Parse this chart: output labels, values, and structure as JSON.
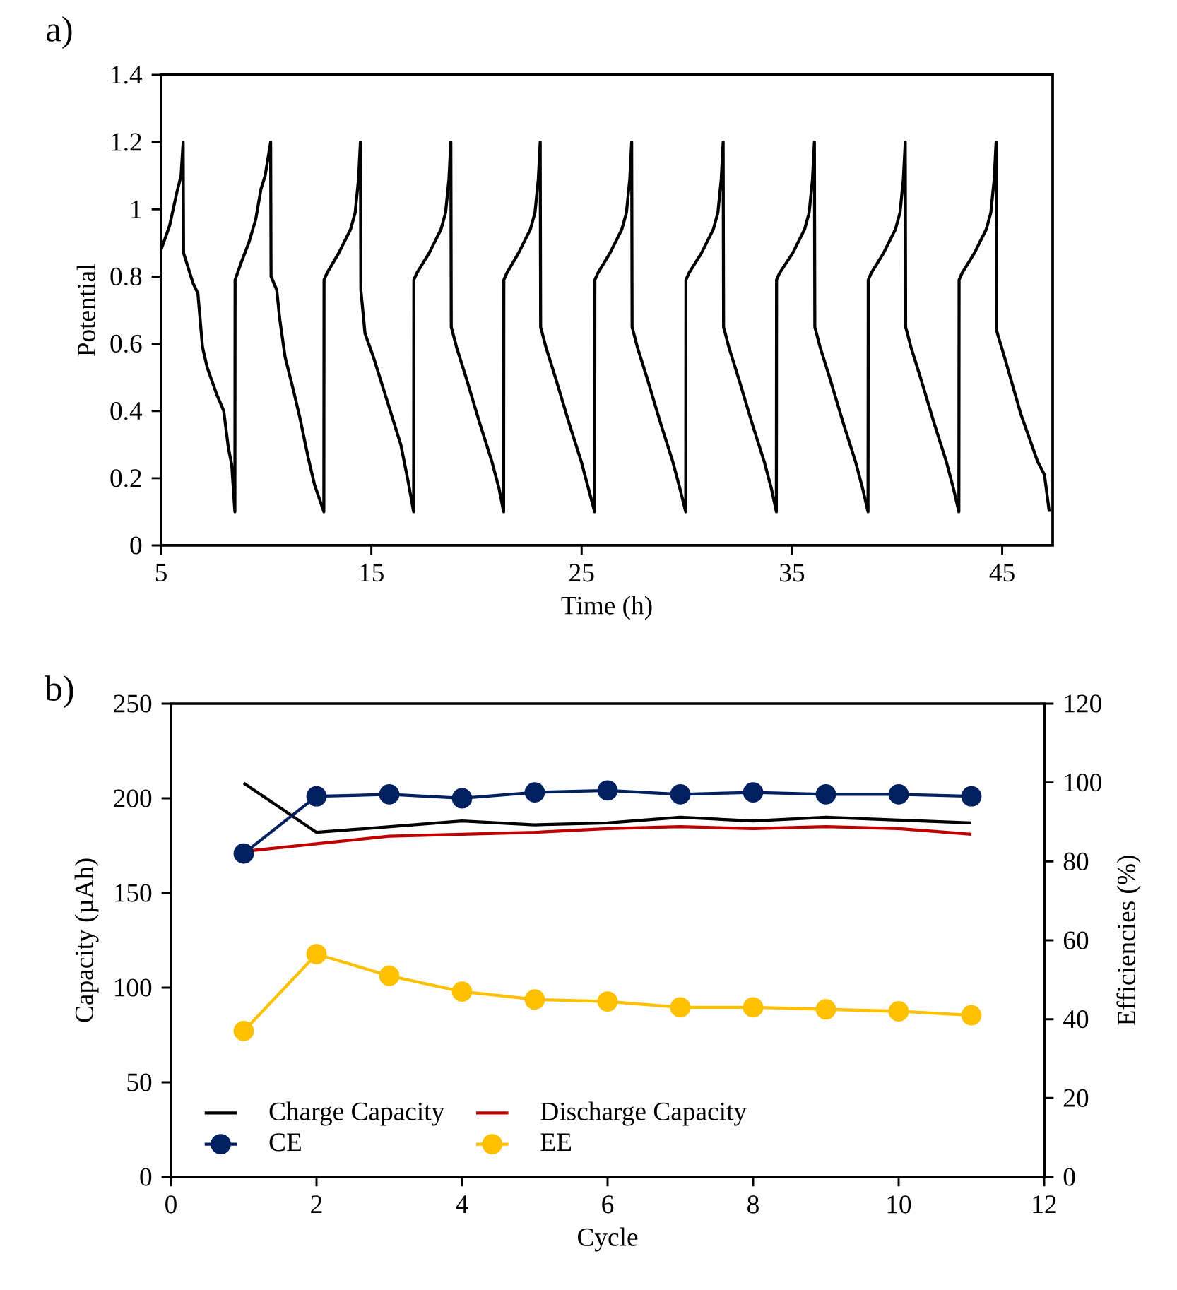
{
  "chart_data": [
    {
      "type": "line",
      "annotations": [
        "a)"
      ],
      "xlabel": "Time (h)",
      "ylabel": "Potential",
      "xlim": [
        5,
        47.4
      ],
      "xticks": [
        5,
        15,
        25,
        35,
        45
      ],
      "ylim": [
        0,
        1.4
      ],
      "yticks": [
        0,
        0.2,
        0.4,
        0.6,
        0.8,
        1,
        1.2,
        1.4
      ],
      "series": [
        {
          "color": "#000000",
          "x": [
            5,
            5.4,
            5.75,
            5.95,
            6.05,
            6.07,
            6.52,
            6.75,
            6.97,
            7.19,
            7.64,
            7.98,
            8.2,
            8.36,
            8.51,
            8.52,
            8.8,
            9.17,
            9.5,
            9.75,
            9.95,
            10.21,
            10.23,
            10.5,
            10.65,
            10.9,
            11.3,
            11.6,
            12.0,
            12.3,
            12.74,
            12.75,
            12.89,
            13.45,
            14.01,
            14.23,
            14.39,
            14.48,
            14.5,
            14.7,
            15.1,
            15.8,
            16.4,
            16.75,
            17.01,
            17.02,
            17.16,
            17.75,
            18.31,
            18.53,
            18.69,
            18.78,
            18.8,
            19.05,
            19.5,
            20.17,
            20.73,
            21.07,
            21.29,
            21.3,
            21.44,
            22.0,
            22.56,
            22.78,
            22.94,
            23.03,
            23.05,
            23.3,
            23.75,
            24.42,
            24.98,
            25.32,
            25.62,
            25.63,
            25.77,
            26.35,
            26.91,
            27.13,
            27.29,
            27.38,
            27.4,
            27.65,
            28.1,
            28.77,
            29.33,
            29.67,
            29.95,
            29.96,
            30.1,
            30.7,
            31.26,
            31.48,
            31.64,
            31.73,
            31.75,
            32.0,
            32.45,
            33.12,
            33.68,
            34.02,
            34.26,
            34.27,
            34.41,
            35.04,
            35.6,
            35.82,
            35.98,
            36.07,
            36.09,
            36.34,
            36.79,
            37.46,
            38.02,
            38.36,
            38.62,
            38.63,
            38.77,
            39.36,
            39.92,
            40.14,
            40.3,
            40.39,
            40.41,
            40.66,
            41.11,
            41.78,
            42.34,
            42.68,
            42.94,
            42.95,
            43.09,
            43.68,
            44.24,
            44.46,
            44.62,
            44.71,
            44.73,
            45.11,
            45.89,
            46.68,
            47.01,
            47.24
          ],
          "values": [
            0.88,
            0.95,
            1.05,
            1.1,
            1.2,
            0.87,
            0.78,
            0.75,
            0.59,
            0.53,
            0.45,
            0.4,
            0.29,
            0.24,
            0.1,
            0.79,
            0.84,
            0.9,
            0.97,
            1.06,
            1.1,
            1.2,
            0.8,
            0.76,
            0.67,
            0.56,
            0.46,
            0.38,
            0.26,
            0.18,
            0.1,
            0.79,
            0.81,
            0.87,
            0.94,
            0.99,
            1.09,
            1.2,
            0.76,
            0.63,
            0.56,
            0.42,
            0.3,
            0.19,
            0.1,
            0.79,
            0.81,
            0.87,
            0.94,
            0.99,
            1.09,
            1.2,
            0.65,
            0.59,
            0.5,
            0.36,
            0.25,
            0.17,
            0.1,
            0.79,
            0.81,
            0.87,
            0.94,
            0.99,
            1.09,
            1.2,
            0.65,
            0.59,
            0.5,
            0.36,
            0.25,
            0.17,
            0.1,
            0.79,
            0.81,
            0.87,
            0.94,
            0.99,
            1.09,
            1.2,
            0.65,
            0.59,
            0.5,
            0.36,
            0.25,
            0.17,
            0.1,
            0.79,
            0.81,
            0.87,
            0.94,
            0.99,
            1.09,
            1.2,
            0.65,
            0.59,
            0.5,
            0.36,
            0.25,
            0.17,
            0.1,
            0.79,
            0.81,
            0.87,
            0.94,
            0.99,
            1.09,
            1.2,
            0.65,
            0.59,
            0.5,
            0.36,
            0.25,
            0.17,
            0.1,
            0.79,
            0.81,
            0.87,
            0.94,
            0.99,
            1.09,
            1.2,
            0.65,
            0.59,
            0.5,
            0.36,
            0.25,
            0.17,
            0.1,
            0.79,
            0.81,
            0.87,
            0.94,
            0.99,
            1.09,
            1.2,
            0.64,
            0.56,
            0.39,
            0.25,
            0.21,
            0.1
          ]
        }
      ]
    },
    {
      "type": "line",
      "annotations": [
        "b)"
      ],
      "xlabel": "Cycle",
      "ylabel": "Capacity (µAh)",
      "y2label": "Efficiencies (%)",
      "x": [
        1,
        2,
        3,
        4,
        5,
        6,
        7,
        8,
        9,
        10,
        11
      ],
      "xlim": [
        0,
        12
      ],
      "xticks": [
        0,
        2,
        4,
        6,
        8,
        10,
        12
      ],
      "ylim": [
        0,
        250
      ],
      "yticks": [
        0,
        50,
        100,
        150,
        200,
        250
      ],
      "y2lim": [
        0,
        120
      ],
      "y2ticks": [
        0,
        20,
        40,
        60,
        80,
        100,
        120
      ],
      "legend": "bottom left",
      "series": [
        {
          "name": "Charge Capacity",
          "color": "#000000",
          "marker": "none",
          "values": [
            208,
            182,
            185,
            188,
            186,
            187,
            190,
            188,
            190,
            188.5,
            187
          ]
        },
        {
          "name": "Discharge Capacity",
          "color": "#c00000",
          "marker": "none",
          "values": [
            172,
            176,
            180,
            181,
            182,
            184,
            185,
            184,
            185,
            184,
            181
          ]
        },
        {
          "name": "CE",
          "color": "#002060",
          "marker": "circle",
          "axis": "y2",
          "values": [
            82,
            96.5,
            97,
            96,
            97.5,
            98,
            97,
            97.5,
            97,
            97,
            96.5
          ]
        },
        {
          "name": "EE",
          "color": "#ffc000",
          "marker": "circle",
          "axis": "y2",
          "values": [
            37,
            56.5,
            51,
            47,
            45,
            44.5,
            43,
            43,
            42.5,
            42,
            41
          ]
        }
      ]
    }
  ]
}
